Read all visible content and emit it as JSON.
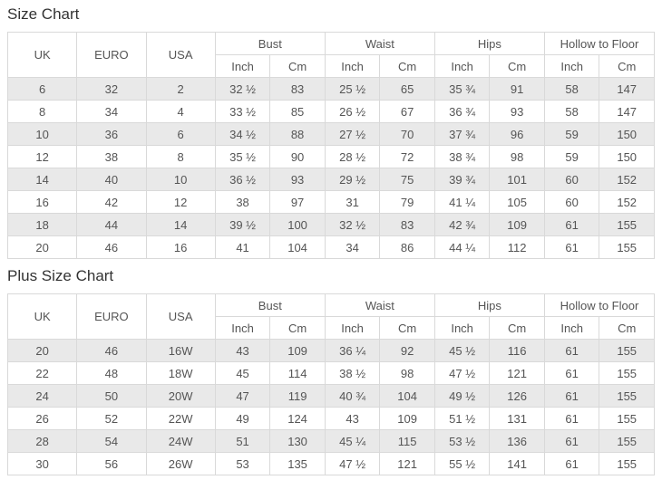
{
  "page": {
    "sections": [
      {
        "title": "Size Chart",
        "columns": [
          "UK",
          "EURO",
          "USA"
        ],
        "groups": [
          "Bust",
          "Waist",
          "Hips",
          "Hollow to Floor"
        ],
        "unit_headers": [
          "Inch",
          "Cm"
        ],
        "rows": [
          [
            "6",
            "32",
            "2",
            "32 ½",
            "83",
            "25 ½",
            "65",
            "35 ¾",
            "91",
            "58",
            "147"
          ],
          [
            "8",
            "34",
            "4",
            "33 ½",
            "85",
            "26 ½",
            "67",
            "36 ¾",
            "93",
            "58",
            "147"
          ],
          [
            "10",
            "36",
            "6",
            "34 ½",
            "88",
            "27 ½",
            "70",
            "37 ¾",
            "96",
            "59",
            "150"
          ],
          [
            "12",
            "38",
            "8",
            "35 ½",
            "90",
            "28 ½",
            "72",
            "38 ¾",
            "98",
            "59",
            "150"
          ],
          [
            "14",
            "40",
            "10",
            "36 ½",
            "93",
            "29 ½",
            "75",
            "39 ¾",
            "101",
            "60",
            "152"
          ],
          [
            "16",
            "42",
            "12",
            "38",
            "97",
            "31",
            "79",
            "41 ¼",
            "105",
            "60",
            "152"
          ],
          [
            "18",
            "44",
            "14",
            "39 ½",
            "100",
            "32 ½",
            "83",
            "42 ¾",
            "109",
            "61",
            "155"
          ],
          [
            "20",
            "46",
            "16",
            "41",
            "104",
            "34",
            "86",
            "44 ¼",
            "112",
            "61",
            "155"
          ]
        ]
      },
      {
        "title": "Plus Size Chart",
        "columns": [
          "UK",
          "EURO",
          "USA"
        ],
        "groups": [
          "Bust",
          "Waist",
          "Hips",
          "Hollow to Floor"
        ],
        "unit_headers": [
          "Inch",
          "Cm"
        ],
        "rows": [
          [
            "20",
            "46",
            "16W",
            "43",
            "109",
            "36 ¼",
            "92",
            "45 ½",
            "116",
            "61",
            "155"
          ],
          [
            "22",
            "48",
            "18W",
            "45",
            "114",
            "38 ½",
            "98",
            "47 ½",
            "121",
            "61",
            "155"
          ],
          [
            "24",
            "50",
            "20W",
            "47",
            "119",
            "40 ¾",
            "104",
            "49 ½",
            "126",
            "61",
            "155"
          ],
          [
            "26",
            "52",
            "22W",
            "49",
            "124",
            "43",
            "109",
            "51 ½",
            "131",
            "61",
            "155"
          ],
          [
            "28",
            "54",
            "24W",
            "51",
            "130",
            "45 ¼",
            "115",
            "53 ½",
            "136",
            "61",
            "155"
          ],
          [
            "30",
            "56",
            "26W",
            "53",
            "135",
            "47 ½",
            "121",
            "55 ½",
            "141",
            "61",
            "155"
          ]
        ]
      }
    ]
  },
  "colors": {
    "row_alt_background": "#e9e9e9",
    "table_border": "#d9d9d9",
    "cell_text": "#555555",
    "title_text": "#333333",
    "page_background": "#ffffff"
  }
}
